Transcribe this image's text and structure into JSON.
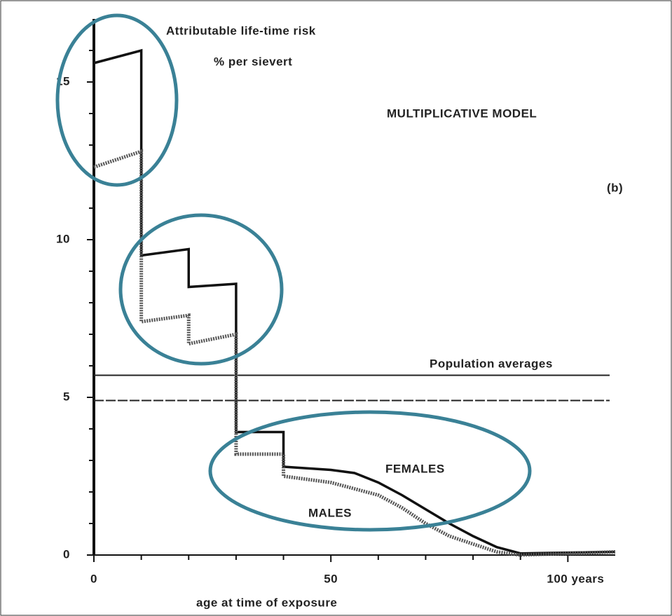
{
  "chart_data": {
    "type": "line",
    "title": "Attributable life-time risk",
    "subtitle": "% per sievert",
    "model_label": "MULTIPLICATIVE MODEL",
    "panel_label": "(b)",
    "x_label": "age at time of exposure",
    "x": [
      0,
      10,
      10,
      20,
      20,
      30,
      30,
      40,
      40,
      50,
      55,
      60,
      65,
      70,
      75,
      80,
      85,
      90,
      110
    ],
    "series": [
      {
        "name": "FEMALES",
        "color": "#111111",
        "dashed": false,
        "values": [
          15.6,
          16.0,
          9.5,
          9.7,
          8.5,
          8.6,
          3.9,
          3.9,
          2.8,
          2.7,
          2.6,
          2.3,
          1.9,
          1.45,
          1.0,
          0.6,
          0.25,
          0.05,
          0.1
        ]
      },
      {
        "name": "MALES",
        "color": "#555555",
        "dashed": true,
        "values": [
          12.3,
          12.8,
          7.4,
          7.6,
          6.7,
          7.0,
          3.2,
          3.2,
          2.5,
          2.3,
          2.1,
          1.9,
          1.5,
          1.0,
          0.6,
          0.35,
          0.1,
          0,
          0.1
        ]
      }
    ],
    "reference_label": "Population averages",
    "reference_lines": [
      {
        "value": 5.7,
        "dashed": false
      },
      {
        "value": 4.9,
        "dashed": true
      }
    ],
    "xlim": [
      0,
      110
    ],
    "ylim": [
      0,
      17
    ],
    "xticks": [
      0,
      50,
      {
        "value": 100,
        "label": "100 years"
      }
    ],
    "xminorticks": [
      10,
      20,
      30,
      40,
      60,
      70,
      80,
      90
    ],
    "yticks": [
      0,
      5,
      10,
      15
    ],
    "yminorticks": [
      1,
      2,
      3,
      4,
      6,
      7,
      8,
      9,
      11,
      12,
      13,
      14,
      16
    ]
  }
}
